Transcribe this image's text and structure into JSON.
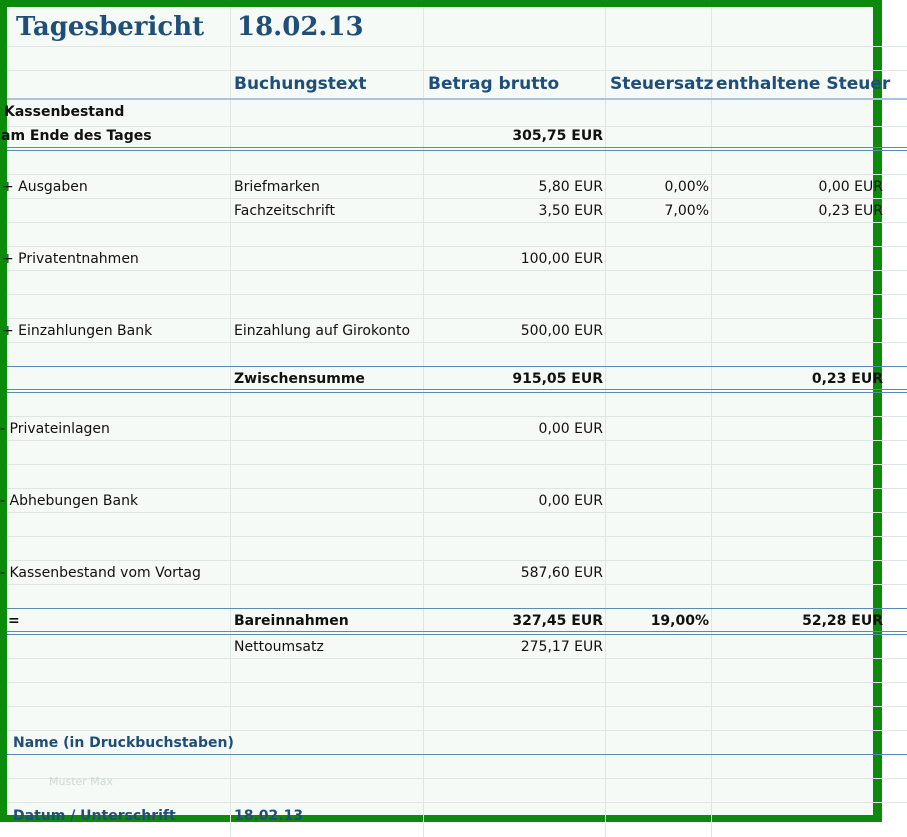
{
  "title": "Tagesbericht",
  "date": "18.02.13",
  "headers": {
    "buchungstext": "Buchungstext",
    "betrag": "Betrag brutto",
    "steuersatz": "Steuersatz",
    "enthaltene": "enthaltene Steuer"
  },
  "kassenbestand": {
    "line1": "Kassenbestand",
    "line2": "am Ende des Tages",
    "amount": "305,75 EUR"
  },
  "ausgaben": {
    "label": "+ Ausgaben",
    "rows": [
      {
        "text": "Briefmarken",
        "amount": "5,80 EUR",
        "rate": "0,00%",
        "tax": "0,00 EUR"
      },
      {
        "text": "Fachzeitschrift",
        "amount": "3,50 EUR",
        "rate": "7,00%",
        "tax": "0,23 EUR"
      }
    ]
  },
  "privatentnahmen": {
    "label": "+ Privatentnahmen",
    "amount": "100,00 EUR"
  },
  "einzahlungen": {
    "label": "+ Einzahlungen Bank",
    "text": "Einzahlung auf Girokonto",
    "amount": "500,00 EUR"
  },
  "zwischensumme": {
    "label": "Zwischensumme",
    "amount": "915,05 EUR",
    "tax": "0,23 EUR"
  },
  "privateinlagen": {
    "label": "- Privateinlagen",
    "amount": "0,00 EUR"
  },
  "abhebungen": {
    "label": "- Abhebungen Bank",
    "amount": "0,00 EUR"
  },
  "vortag": {
    "label": "- Kassenbestand vom Vortag",
    "amount": "587,60 EUR"
  },
  "bareinnahmen": {
    "sign": "=",
    "label": "Bareinnahmen",
    "amount": "327,45 EUR",
    "rate": "19,00%",
    "tax": "52,28 EUR"
  },
  "nettoumsatz": {
    "label": "Nettoumsatz",
    "amount": "275,17 EUR"
  },
  "name": {
    "label": "Name (in Druckbuchstaben)",
    "faint": "Muster Max"
  },
  "datum": {
    "label": "Datum / Unterschrift",
    "value": "18.02.13"
  }
}
